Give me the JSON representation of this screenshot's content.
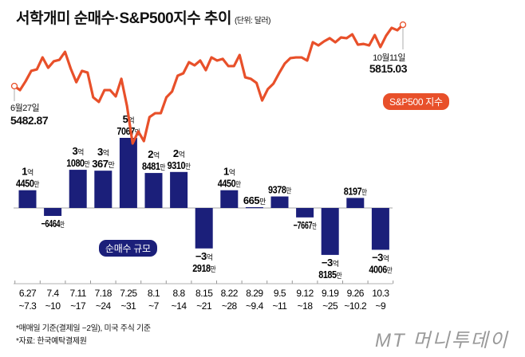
{
  "title": "서학개미 순매수·S&P500지수 추이",
  "unit": "(단위: 달러)",
  "colors": {
    "line": "#e8502a",
    "bar": "#1b1f7a"
  },
  "start_annotation": {
    "date": "6월27일",
    "value": "5482.87"
  },
  "end_annotation": {
    "date": "10월11일",
    "value": "5815.03"
  },
  "legend_line": "S&P500 지수",
  "legend_bar": "순매수 규모",
  "footnotes": [
    "*매매일 기준(결제일 −2일), 미국 주식 기준",
    "*자료: 한국예탁결제원"
  ],
  "logo": "MT 머니투데이",
  "chart_data": [
    {
      "type": "line",
      "series": [
        {
          "name": "S&P500 지수",
          "values": [
            5482.87,
            5461,
            5509,
            5565,
            5573,
            5638,
            5582,
            5617,
            5625,
            5668,
            5578,
            5504,
            5565,
            5556,
            5422,
            5397,
            5461,
            5461,
            5427,
            5522,
            5375,
            5172,
            5237,
            5185,
            5315,
            5336,
            5336,
            5422,
            5453,
            5539,
            5552,
            5612,
            5595,
            5621,
            5569,
            5638,
            5621,
            5630,
            5591,
            5591,
            5651,
            5530,
            5522,
            5500,
            5405,
            5466,
            5496,
            5552,
            5604,
            5634,
            5638,
            5638,
            5621,
            5720,
            5703,
            5725,
            5742,
            5720,
            5746,
            5742,
            5763,
            5707,
            5711,
            5703,
            5759,
            5694,
            5755,
            5798,
            5785,
            5815.03
          ]
        }
      ],
      "x_start": "6월27일",
      "x_end": "10월11일"
    },
    {
      "type": "bar",
      "series": [
        {
          "name": "순매수 규모",
          "unit": "만 달러"
        }
      ],
      "categories": [
        [
          "6.27",
          "~7.3"
        ],
        [
          "7.4",
          "~10"
        ],
        [
          "7.11",
          "~17"
        ],
        [
          "7.18",
          "~24"
        ],
        [
          "7.25",
          "~31"
        ],
        [
          "8.1",
          "~7"
        ],
        [
          "8.8",
          "~14"
        ],
        [
          "8.15",
          "~21"
        ],
        [
          "8.22",
          "~28"
        ],
        [
          "8.29",
          "~9.4"
        ],
        [
          "9.5",
          "~11"
        ],
        [
          "9.12",
          "~18"
        ],
        [
          "9.19",
          "~25"
        ],
        [
          "9.26",
          "~10.2"
        ],
        [
          "10.3",
          "~9"
        ]
      ],
      "values": [
        14450,
        -6464,
        31080,
        30367,
        57067,
        28481,
        29310,
        -32918,
        14450,
        665,
        9378,
        -7667,
        -38185,
        8197,
        -34006
      ],
      "labels": [
        [
          "1억",
          "4450만"
        ],
        [
          "−6464만"
        ],
        [
          "3억",
          "1080만"
        ],
        [
          "3억",
          "367만"
        ],
        [
          "5억",
          "7067만"
        ],
        [
          "2억",
          "8481만"
        ],
        [
          "2억",
          "9310만"
        ],
        [
          "−3억",
          "2918만"
        ],
        [
          "1억",
          "4450만"
        ],
        [
          "665만"
        ],
        [
          "9378만"
        ],
        [
          "−7667만"
        ],
        [
          "−3억",
          "8185만"
        ],
        [
          "8197만"
        ],
        [
          "−3억",
          "4006만"
        ]
      ]
    }
  ]
}
